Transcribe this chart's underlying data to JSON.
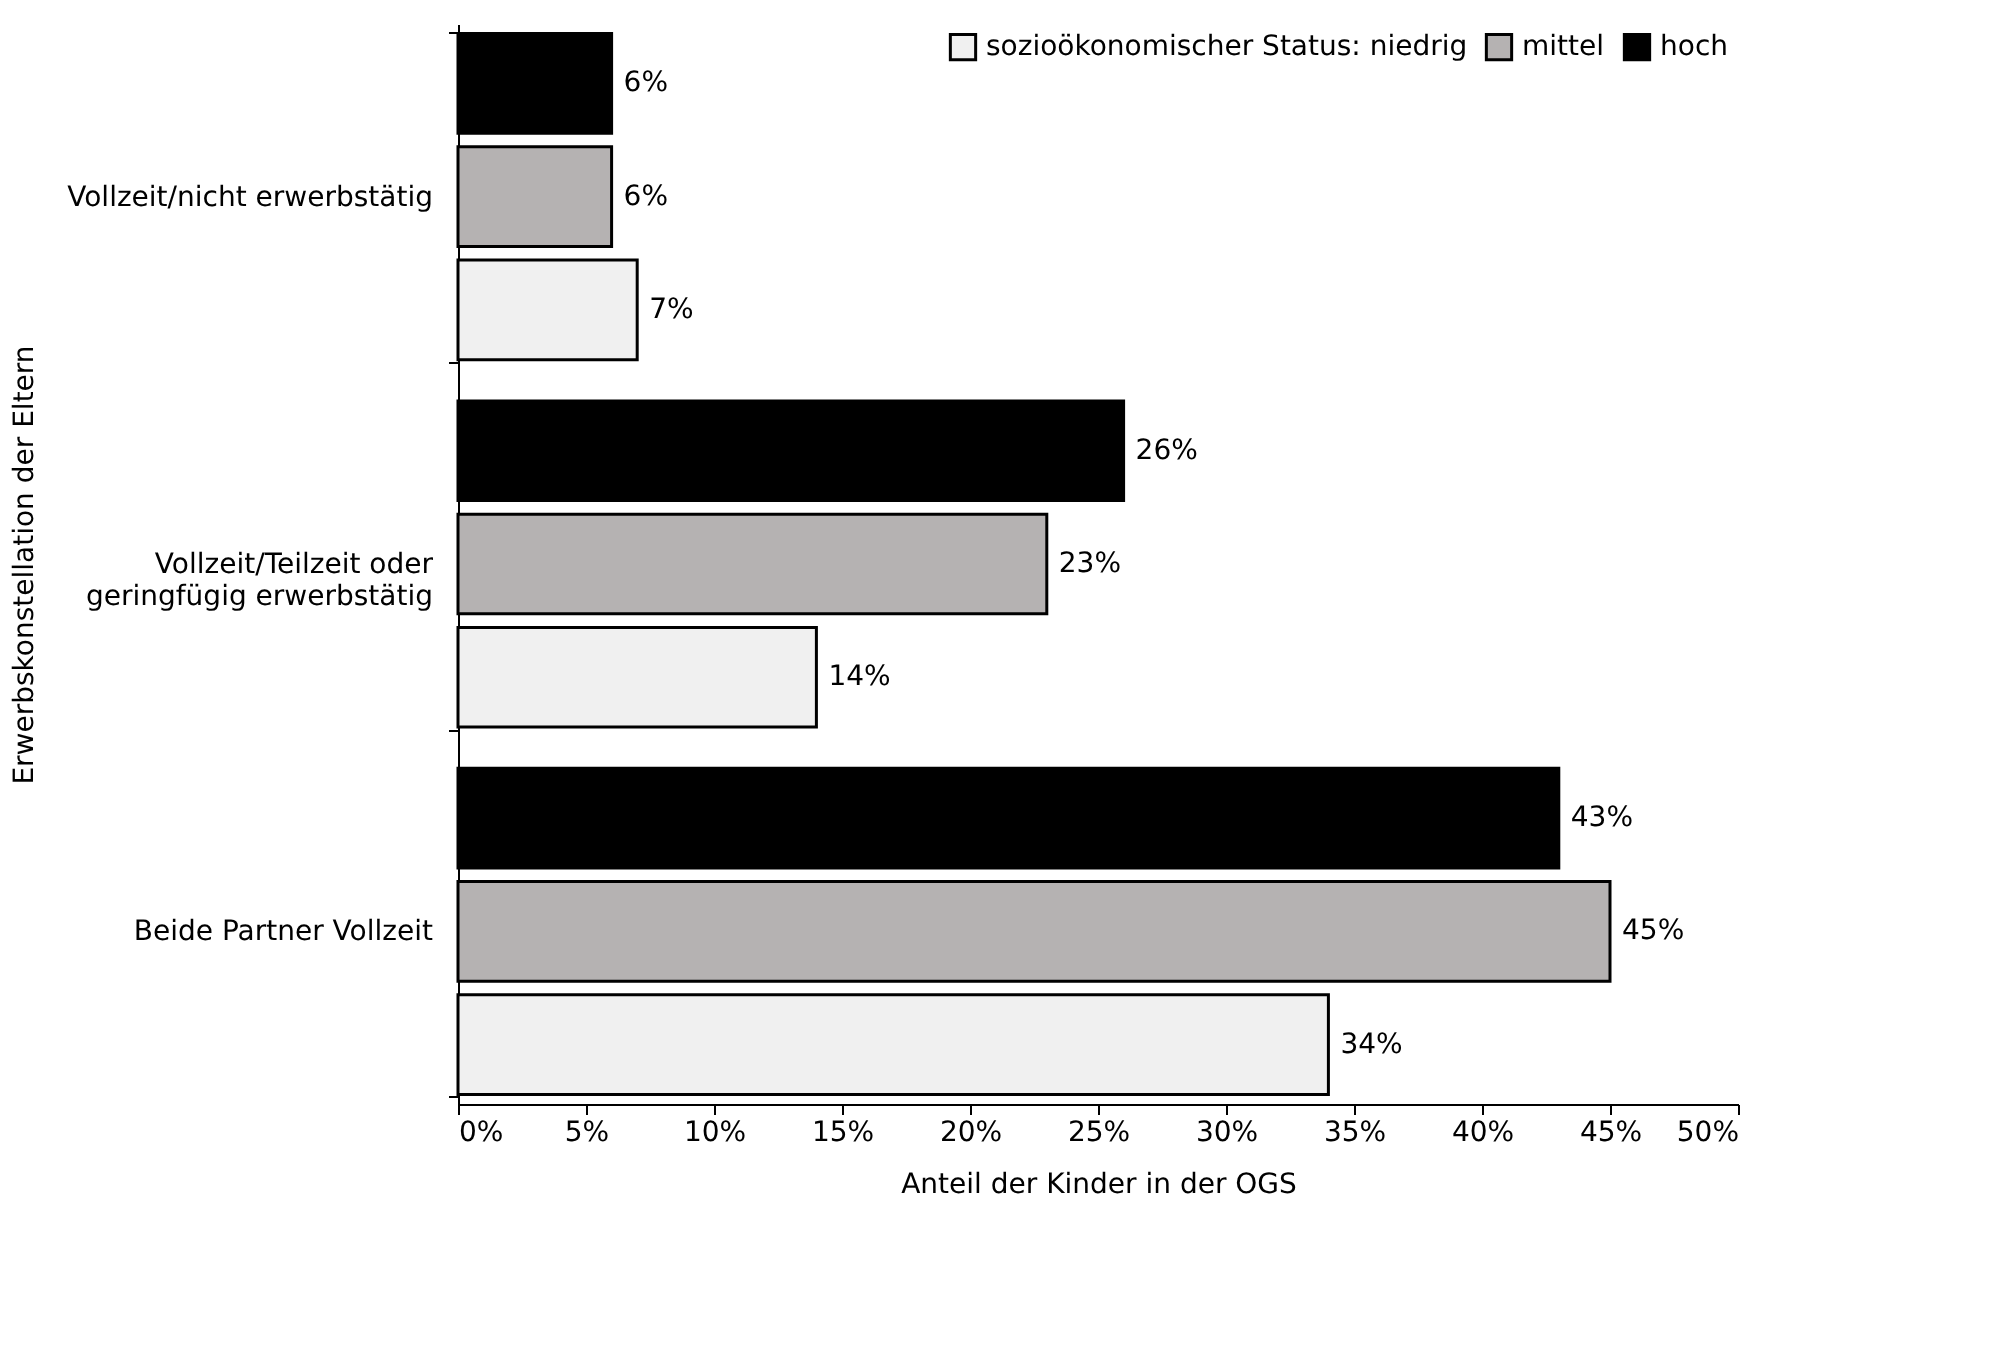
{
  "chart_data": {
    "type": "bar",
    "orientation": "horizontal",
    "categories": [
      "Vollzeit/nicht erwerbstätig",
      "Vollzeit/Teilzeit oder\ngeringfügig erwerbstätig",
      "Beide Partner Vollzeit"
    ],
    "series": [
      {
        "name": "sozioökonomischer Status: niedrig",
        "color": "#f0f0f0",
        "values": [
          7,
          14,
          34
        ],
        "value_labels": [
          "7%",
          "14%",
          "34%"
        ]
      },
      {
        "name": "mittel",
        "color": "#b5b2b2",
        "values": [
          6,
          23,
          45
        ],
        "value_labels": [
          "6%",
          "23%",
          "45%"
        ]
      },
      {
        "name": "hoch",
        "color": "#000000",
        "values": [
          6,
          26,
          43
        ],
        "value_labels": [
          "6%",
          "26%",
          "43%"
        ]
      }
    ],
    "xlabel": "Anteil der Kinder in der OGS",
    "ylabel": "Erwerbskonstellation der Eltern",
    "xlim": [
      0,
      50
    ],
    "xticks": [
      {
        "value": 0,
        "label": "0%"
      },
      {
        "value": 5,
        "label": "5%"
      },
      {
        "value": 10,
        "label": "10%"
      },
      {
        "value": 15,
        "label": "15%"
      },
      {
        "value": 20,
        "label": "20%"
      },
      {
        "value": 25,
        "label": "25%"
      },
      {
        "value": 30,
        "label": "30%"
      },
      {
        "value": 35,
        "label": "35%"
      },
      {
        "value": 40,
        "label": "40%"
      },
      {
        "value": 45,
        "label": "45%"
      },
      {
        "value": 50,
        "label": "50%"
      }
    ],
    "grid": false,
    "legend": "top right"
  }
}
